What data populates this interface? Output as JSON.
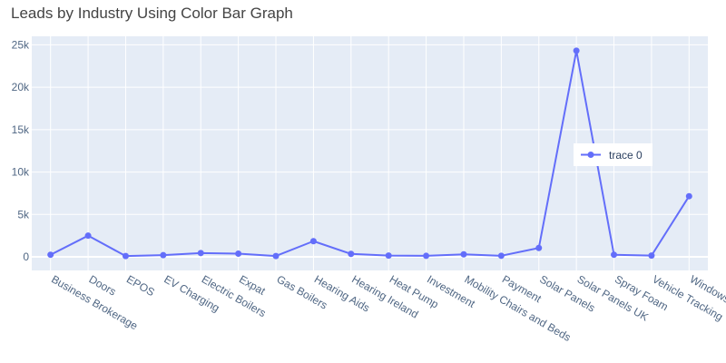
{
  "chart_data": {
    "type": "line",
    "title": "Leads by Industry Using Color Bar Graph",
    "xlabel": "",
    "ylabel": "",
    "categories": [
      "Business Brokerage",
      "Doors",
      "EPOS",
      "EV Charging",
      "Electric Boilers",
      "Expat",
      "Gas Boilers",
      "Hearing Aids",
      "Hearing Ireland",
      "Heat Pump",
      "Investment",
      "Mobility Chairs and Beds",
      "Payment",
      "Solar Panels",
      "Solar Panels UK",
      "Spray Foam",
      "Vehicle Tracking",
      "Windows"
    ],
    "series": [
      {
        "name": "trace 0",
        "values": [
          250,
          2500,
          100,
          200,
          450,
          380,
          100,
          1850,
          350,
          150,
          120,
          300,
          130,
          1050,
          24300,
          250,
          150,
          7150
        ]
      }
    ],
    "ylim": [
      -1600,
      26000
    ],
    "yticks": [
      0,
      5000,
      10000,
      15000,
      20000,
      25000
    ],
    "ytick_labels": [
      "0",
      "5k",
      "10k",
      "15k",
      "20k",
      "25k"
    ],
    "grid": true,
    "legend": "right",
    "colors": {
      "line": "#636efa",
      "plot_bg": "#e5ecf6",
      "grid": "#ffffff"
    }
  }
}
